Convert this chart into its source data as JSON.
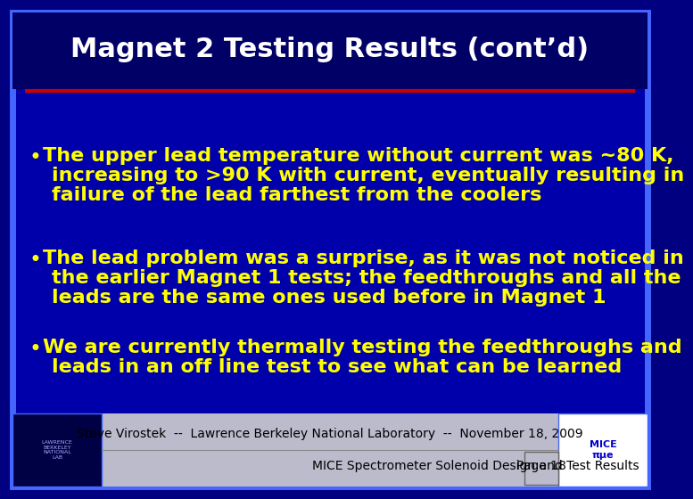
{
  "title": "Magnet 2 Testing Results (cont’d)",
  "title_color": "#FFFFFF",
  "title_fontsize": 22,
  "bg_color": "#000080",
  "outer_border_color": "#4466FF",
  "inner_bg_color": "#0000AA",
  "red_line_color": "#CC0000",
  "bullet_color": "#FFFF00",
  "bullet_fontsize": 16,
  "bullets": [
    "The upper lead temperature without current was ~80 K,\n  increasing to >90 K with current, eventually resulting in\n  failure of the lead farthest from the coolers",
    "The lead problem was a surprise, as it was not noticed in\n  the earlier Magnet 1 tests; the feedthroughs and all the\n  leads are the same ones used before in Magnet 1",
    "We are currently thermally testing the feedthroughs and\n  leads in an off line test to see what can be learned"
  ],
  "footer_bg": "#CCCCDD",
  "footer_line1": "Steve Virostek  --  Lawrence Berkeley National Laboratory  --  November 18, 2009",
  "footer_line2": "MICE Spectrometer Solenoid Design and Test Results",
  "footer_page": "Page 18",
  "footer_fontsize": 10
}
